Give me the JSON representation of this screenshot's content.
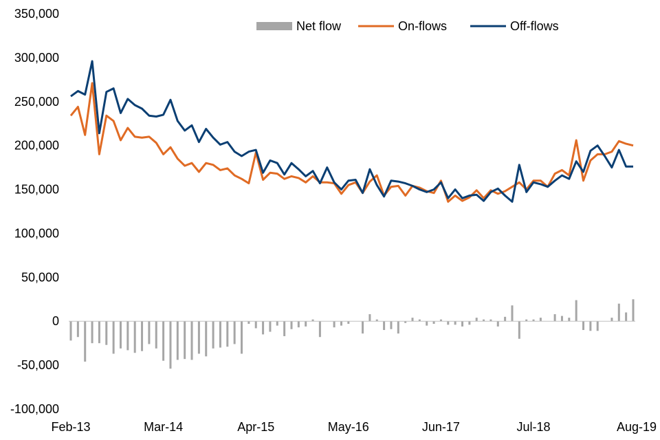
{
  "chart_data": {
    "type": "line",
    "title": "",
    "xlabel": "",
    "ylabel": "",
    "ylim": [
      -100000,
      350000
    ],
    "yticks": [
      -100000,
      -50000,
      0,
      50000,
      100000,
      150000,
      200000,
      250000,
      300000,
      350000
    ],
    "ytick_labels": [
      "-100,000",
      "-50,000",
      "0",
      "50,000",
      "100,000",
      "150,000",
      "200,000",
      "250,000",
      "300,000",
      "350,000"
    ],
    "x_start": "Feb-13",
    "x_end": "Aug-19",
    "xtick_labels": [
      "Feb-13",
      "Mar-14",
      "Apr-15",
      "May-16",
      "Jun-17",
      "Jul-18",
      "Aug-19"
    ],
    "xtick_indices": [
      0,
      13,
      26,
      39,
      52,
      65,
      78
    ],
    "grid": false,
    "legend_position": "top-right",
    "colors": {
      "net": "#a6a6a6",
      "on": "#e06b24",
      "off": "#0b3f73"
    },
    "series": [
      {
        "name": "Net flow",
        "kind": "bar",
        "values": [
          -22000,
          -18000,
          -46000,
          -25000,
          -25000,
          -27000,
          -37000,
          -31000,
          -33000,
          -36000,
          -34000,
          -26000,
          -31000,
          -45000,
          -54000,
          -44000,
          -43000,
          -44000,
          -37000,
          -40000,
          -31000,
          -30000,
          -29000,
          -26000,
          -37000,
          -3000,
          -8000,
          -15000,
          -12000,
          -5000,
          -17000,
          -9000,
          -7000,
          -6000,
          2000,
          -18000,
          0,
          -7000,
          -5000,
          -3000,
          0,
          -14000,
          8000,
          2000,
          -10000,
          -9000,
          -14000,
          -2000,
          4000,
          2000,
          -5000,
          -3000,
          2000,
          -4000,
          -4000,
          -6000,
          -4000,
          4000,
          2000,
          2000,
          -6000,
          5000,
          18000,
          -20000,
          2000,
          2000,
          4000,
          0,
          8000,
          6000,
          4000,
          24000,
          -10000,
          -11000,
          -11000,
          0,
          4000,
          20000,
          10000,
          25000
        ]
      },
      {
        "name": "On-flows",
        "kind": "line",
        "values": [
          234000,
          244000,
          212000,
          271000,
          190000,
          234000,
          228000,
          206000,
          220000,
          210000,
          209000,
          210000,
          203000,
          190000,
          198000,
          185000,
          177000,
          180000,
          170000,
          180000,
          178000,
          172000,
          174000,
          166000,
          162000,
          157000,
          192000,
          161000,
          169000,
          168000,
          162000,
          165000,
          163000,
          158000,
          165000,
          158000,
          158000,
          157000,
          145000,
          155000,
          158000,
          146000,
          159000,
          166000,
          143000,
          153000,
          154000,
          143000,
          154000,
          152000,
          148000,
          146000,
          160000,
          136000,
          143000,
          137000,
          141000,
          149000,
          140000,
          149000,
          145000,
          148000,
          153000,
          158000,
          150000,
          160000,
          160000,
          153000,
          168000,
          172000,
          166000,
          206000,
          160000,
          183000,
          190000,
          190000,
          193000,
          205000,
          202000,
          200000
        ]
      },
      {
        "name": "Off-flows",
        "kind": "line",
        "values": [
          256000,
          262000,
          258000,
          296000,
          214000,
          261000,
          265000,
          237000,
          253000,
          246000,
          242000,
          234000,
          233000,
          235000,
          252000,
          228000,
          217000,
          223000,
          204000,
          219000,
          209000,
          201000,
          204000,
          193000,
          188000,
          193000,
          195000,
          169000,
          183000,
          180000,
          167000,
          180000,
          173000,
          165000,
          171000,
          157000,
          175000,
          158000,
          150000,
          160000,
          161000,
          146000,
          173000,
          155000,
          142000,
          160000,
          159000,
          157000,
          154000,
          150000,
          147000,
          150000,
          158000,
          140000,
          150000,
          140000,
          143000,
          144000,
          137000,
          147000,
          151000,
          143000,
          136000,
          178000,
          147000,
          158000,
          156000,
          153000,
          160000,
          166000,
          162000,
          182000,
          170000,
          194000,
          200000,
          188000,
          175000,
          195000,
          176000,
          176000
        ]
      }
    ]
  }
}
